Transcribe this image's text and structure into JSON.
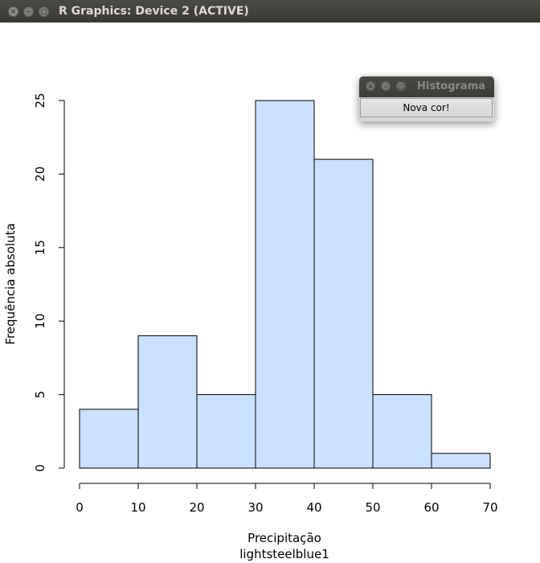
{
  "window": {
    "title": "R Graphics: Device 2 (ACTIVE)"
  },
  "popup": {
    "title": "Histograma",
    "button_label": "Nova cor!"
  },
  "colors": {
    "bar_fill": "#cae1ff",
    "bar_stroke": "#000000"
  },
  "chart_data": {
    "type": "bar",
    "categories": [
      "0-10",
      "10-20",
      "20-30",
      "30-40",
      "40-50",
      "50-60",
      "60-70"
    ],
    "bin_edges": [
      0,
      10,
      20,
      30,
      40,
      50,
      60,
      70
    ],
    "values": [
      4,
      9,
      5,
      25,
      21,
      5,
      1
    ],
    "title": "",
    "xlabel": "Precipitação",
    "sub": "lightsteelblue1",
    "ylabel": "Frequência absoluta",
    "xlim": [
      0,
      70
    ],
    "ylim": [
      0,
      25
    ],
    "x_ticks": [
      0,
      10,
      20,
      30,
      40,
      50,
      60,
      70
    ],
    "y_ticks": [
      0,
      5,
      10,
      15,
      20,
      25
    ],
    "grid": false,
    "legend": "none"
  }
}
